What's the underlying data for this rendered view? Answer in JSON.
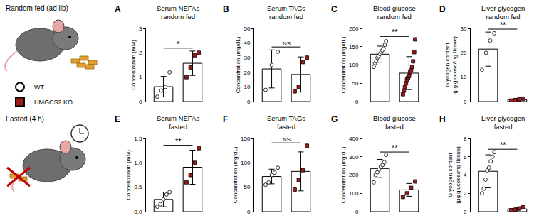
{
  "conditions": [
    "Random fed (ad lib)",
    "Fasted (4 h)"
  ],
  "groups": [
    {
      "name": "WT",
      "color": "#ffffff",
      "marker": "circle"
    },
    {
      "name": "HMGCS2 KO",
      "color": "#9b1c1c",
      "marker": "square"
    }
  ],
  "chart_data": [
    {
      "panel": "A",
      "type": "bar",
      "title": "Serum NEFAs",
      "subtitle": "random fed",
      "ylabel": "Concentration (mM)",
      "categories": [
        "WT",
        "HMGCS2 KO"
      ],
      "values": [
        0.61,
        1.57
      ],
      "errors": [
        0.42,
        0.5
      ],
      "points": [
        [
          0.2,
          0.45,
          0.6,
          1.2
        ],
        [
          1.0,
          1.4,
          1.9,
          2.0
        ]
      ],
      "ylim": [
        0,
        3
      ],
      "yticks": [
        0,
        1,
        2,
        3
      ],
      "tick_labels": "y",
      "annotations": [
        "*"
      ]
    },
    {
      "panel": "B",
      "type": "bar",
      "title": "Serum TAGs",
      "subtitle": "random fed",
      "ylabel": "Concentration (mg/dL)",
      "categories": [
        "WT",
        "HMGCS2 KO"
      ],
      "values": [
        22.3,
        18.5
      ],
      "errors": [
        13,
        12
      ],
      "points": [
        [
          8,
          25,
          34
        ],
        [
          7,
          10,
          27,
          30
        ]
      ],
      "ylim": [
        0,
        50
      ],
      "yticks": [
        0,
        10,
        20,
        30,
        40,
        50
      ],
      "tick_labels": "y",
      "annotations": [
        "NS"
      ]
    },
    {
      "panel": "C",
      "type": "bar",
      "title": "Blood glucose",
      "subtitle": "random fed",
      "ylabel": "Concentration (mg/dL)",
      "categories": [
        "WT",
        "HMGCS2 KO"
      ],
      "values": [
        129.5,
        77.7
      ],
      "errors": [
        22,
        45
      ],
      "points": [
        [
          95,
          105,
          110,
          120,
          125,
          130,
          135,
          140,
          145,
          155,
          165
        ],
        [
          20,
          30,
          40,
          50,
          60,
          65,
          70,
          80,
          85,
          95,
          110,
          135,
          170
        ]
      ],
      "ylim": [
        0,
        200
      ],
      "yticks": [
        0,
        50,
        100,
        150,
        200
      ],
      "tick_labels": "y",
      "annotations": [
        "**"
      ]
    },
    {
      "panel": "D",
      "type": "bar",
      "title": "Liver glycogen",
      "subtitle": "random fed",
      "ylabel": "Glycogen content\n(µg glucose/mg tissue)",
      "categories": [
        "WT",
        "HMGCS2 KO"
      ],
      "values": [
        21.5,
        0.8
      ],
      "errors": [
        7,
        0.4
      ],
      "points": [
        [
          13,
          20,
          25,
          28
        ],
        [
          0.4,
          0.6,
          0.9,
          1.2
        ]
      ],
      "ylim": [
        0,
        30
      ],
      "yticks": [
        0,
        10,
        20,
        30
      ],
      "tick_labels": "y",
      "annotations": [
        "**"
      ]
    },
    {
      "panel": "E",
      "type": "bar",
      "title": "Serum NEFAs",
      "subtitle": "fasted",
      "ylabel": "Concentration (mM)",
      "categories": [
        "WT",
        "HMGCS2 KO"
      ],
      "values": [
        0.25,
        0.91
      ],
      "errors": [
        0.15,
        0.35
      ],
      "points": [
        [
          0.1,
          0.15,
          0.25,
          0.35,
          0.4
        ],
        [
          0.6,
          0.75,
          1.0,
          1.3
        ]
      ],
      "ylim": [
        0,
        1.5
      ],
      "yticks": [
        {
          "value": 0,
          "label": "0.0"
        },
        0.5,
        {
          "value": 1,
          "label": "1.0"
        },
        1.5
      ],
      "tick_labels": "y",
      "annotations": [
        "**"
      ]
    },
    {
      "panel": "F",
      "type": "bar",
      "title": "Serum TAGs",
      "subtitle": "fasted",
      "ylabel": "Concentration (mg/dL)",
      "categories": [
        "WT",
        "HMGCS2 KO"
      ],
      "values": [
        72,
        82.5
      ],
      "errors": [
        15,
        40
      ],
      "points": [
        [
          55,
          60,
          75,
          80,
          90
        ],
        [
          45,
          65,
          85,
          135
        ]
      ],
      "ylim": [
        0,
        150
      ],
      "yticks": [
        0,
        50,
        100,
        150
      ],
      "tick_labels": "y",
      "annotations": [
        "NS"
      ]
    },
    {
      "panel": "G",
      "type": "bar",
      "title": "Blood glucose",
      "subtitle": "fasted",
      "ylabel": "Concentration (mg/dL)",
      "categories": [
        "WT",
        "HMGCS2 KO"
      ],
      "values": [
        235.6,
        118.75
      ],
      "errors": [
        50,
        35
      ],
      "points": [
        [
          160,
          200,
          215,
          230,
          245,
          255,
          270,
          310
        ],
        [
          80,
          100,
          130,
          165
        ]
      ],
      "ylim": [
        0,
        400
      ],
      "yticks": [
        0,
        100,
        200,
        300,
        400
      ],
      "tick_labels": "y",
      "annotations": [
        "**"
      ]
    },
    {
      "panel": "H",
      "type": "bar",
      "title": "Liver glycogen",
      "subtitle": "fasted",
      "ylabel": "Glycogen content\n(µg glucose/mg tissue)",
      "categories": [
        "WT",
        "HMGCS2 KO"
      ],
      "values": [
        4.41,
        0.3
      ],
      "errors": [
        1.8,
        0.15
      ],
      "points": [
        [
          2,
          2.5,
          3.5,
          4.5,
          4.8,
          5.5,
          6,
          6.5
        ],
        [
          0.15,
          0.2,
          0.35,
          0.5
        ]
      ],
      "ylim": [
        0,
        8
      ],
      "yticks": [
        0,
        2,
        4,
        6,
        8
      ],
      "tick_labels": "y",
      "annotations": [
        "**"
      ]
    }
  ]
}
